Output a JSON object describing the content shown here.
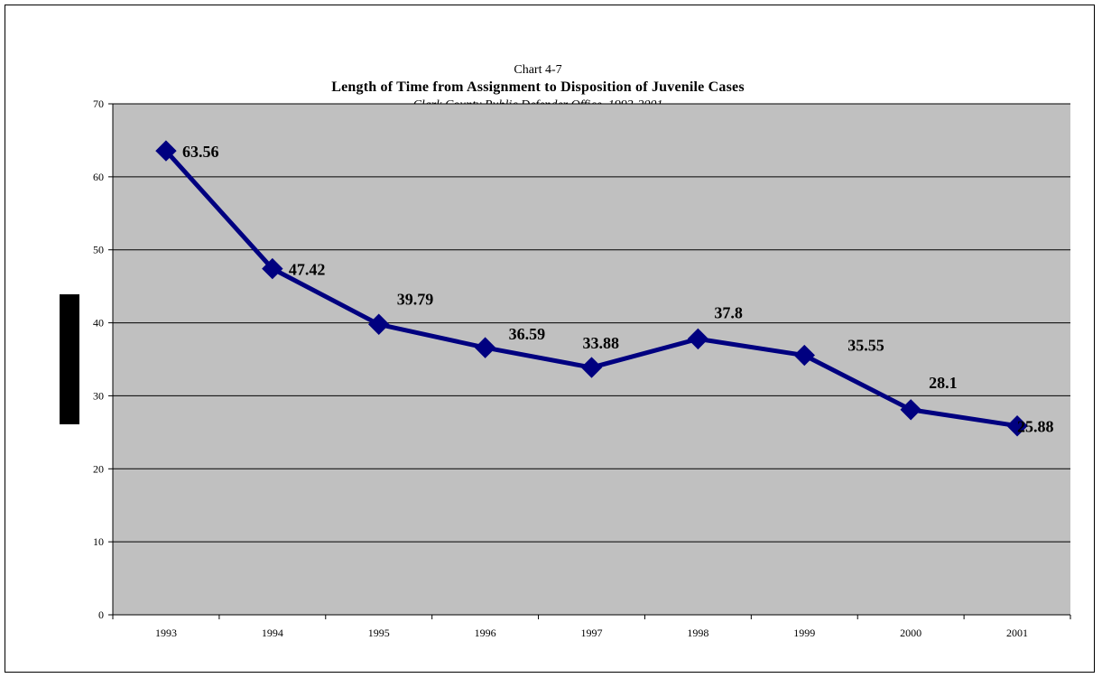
{
  "chart_data": {
    "type": "line",
    "chart_number": "Chart 4-7",
    "title": "Length of Time from Assignment to Disposition of Juvenile Cases",
    "subtitle": "Clark County Public Defender Office, 1993-2001",
    "xlabel": "",
    "ylabel": "",
    "categories": [
      "1993",
      "1994",
      "1995",
      "1996",
      "1997",
      "1998",
      "1999",
      "2000",
      "2001"
    ],
    "series": [
      {
        "values": [
          63.56,
          47.42,
          39.79,
          36.59,
          33.88,
          37.8,
          35.55,
          28.1,
          25.88
        ],
        "labels": [
          "63.56",
          "47.42",
          "39.79",
          "36.59",
          "33.88",
          "37.8",
          "35.55",
          "28.1",
          "25.88"
        ]
      }
    ],
    "ylim": [
      0,
      70
    ],
    "yticks": [
      0,
      10,
      20,
      30,
      40,
      50,
      60,
      70
    ],
    "ytick_labels": [
      "0",
      "10",
      "20",
      "30",
      "40",
      "50",
      "60",
      "70"
    ],
    "grid": true,
    "legend": "none",
    "colors": {
      "plot_background": "#C0C0C0",
      "line": "#000080",
      "marker": "#000080",
      "gridline": "#000000"
    },
    "marker": "diamond"
  }
}
